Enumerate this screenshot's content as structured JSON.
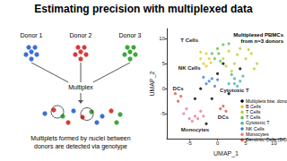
{
  "slide": {
    "title": "Estimating precision with multiplexed data",
    "diagram": {
      "donors": [
        {
          "label": "Donor 1",
          "color": "#3a6fd8"
        },
        {
          "label": "Donor 2",
          "color": "#d83a3a"
        },
        {
          "label": "Donor 3",
          "color": "#3aa83a"
        }
      ],
      "step": "Multiplex",
      "caption": [
        "Multiplets formed by nuclei between",
        "donors are detected via genotype"
      ]
    }
  },
  "chart_data": {
    "type": "scatter",
    "x_label": "UMAP_1",
    "y_label": "UMAP_2",
    "note": [
      "Multiplexed PBMCs",
      "from n=3 donors"
    ],
    "annotations": [
      "T Cells",
      "NK Cells",
      "Cytotoxic T",
      "DCs",
      "DCs",
      "Monocytes"
    ],
    "xlim": [
      -9,
      12
    ],
    "xticks": [
      -5,
      0,
      5,
      10
    ],
    "ylim": [
      -10,
      12
    ],
    "yticks": [
      -5,
      0,
      5,
      10
    ],
    "grid": false,
    "legend": "right",
    "series": [
      {
        "name": "Multiplets btw. donors",
        "color": "#000000",
        "values": [
          [
            0,
            3
          ],
          [
            -1,
            -2
          ],
          [
            2,
            -1
          ],
          [
            -4,
            -2
          ],
          [
            1,
            5
          ],
          [
            -3,
            0
          ],
          [
            4,
            4
          ],
          [
            -2,
            -7
          ]
        ]
      },
      {
        "name": "B Cells",
        "color": "#e8c820",
        "values": [
          [
            -3,
            6
          ],
          [
            -2,
            7
          ],
          [
            -2.5,
            5
          ],
          [
            -1.5,
            6
          ],
          [
            -3,
            7.3
          ],
          [
            -2,
            4.5
          ],
          [
            -1.2,
            5.2
          ]
        ]
      },
      {
        "name": "T Cells",
        "color": "#b5d334",
        "values": [
          [
            1,
            6
          ],
          [
            2,
            7.5
          ],
          [
            3,
            5
          ],
          [
            4,
            8
          ],
          [
            5,
            6
          ],
          [
            6,
            7
          ],
          [
            2.5,
            3.5
          ],
          [
            7,
            5
          ],
          [
            3.5,
            6.8
          ],
          [
            5.5,
            7.8
          ],
          [
            1.5,
            4.5
          ],
          [
            6.5,
            4
          ]
        ]
      },
      {
        "name": "T Cells",
        "color": "#5fbf4f",
        "values": [
          [
            0,
            8
          ],
          [
            -1,
            7
          ],
          [
            0.5,
            5.5
          ],
          [
            -0.5,
            6
          ],
          [
            1,
            8.8
          ],
          [
            2,
            9
          ],
          [
            0.2,
            7
          ]
        ]
      },
      {
        "name": "Cytotoxic T",
        "color": "#3fb6a8",
        "values": [
          [
            2,
            1
          ],
          [
            3,
            2
          ],
          [
            4,
            1.5
          ],
          [
            2.5,
            2.8
          ],
          [
            3.5,
            0.5
          ],
          [
            4.5,
            2.5
          ],
          [
            3,
            1
          ]
        ]
      },
      {
        "name": "NK Cells",
        "color": "#3a7fd0",
        "values": [
          [
            -2,
            1
          ],
          [
            -1,
            2
          ],
          [
            -0.5,
            0.5
          ],
          [
            -1.5,
            1.5
          ],
          [
            0,
            1.8
          ],
          [
            -2.5,
            2.3
          ]
        ]
      },
      {
        "name": "Monocytes",
        "color": "#e87a8a",
        "values": [
          [
            -6,
            -5
          ],
          [
            -5,
            -6
          ],
          [
            -4,
            -5.5
          ],
          [
            -3,
            -4.5
          ],
          [
            -5.5,
            -4
          ],
          [
            -4.5,
            -6.5
          ],
          [
            -3.5,
            -6
          ],
          [
            -2.5,
            -5.5
          ]
        ]
      },
      {
        "name": "Dendritic Cells (DCs)",
        "color": "#e05050",
        "values": [
          [
            -7,
            -2.5
          ],
          [
            -6.5,
            -1.5
          ],
          [
            -7.5,
            -1
          ],
          [
            0.5,
            -4
          ],
          [
            1.5,
            -4.5
          ],
          [
            1,
            -3.5
          ]
        ]
      }
    ]
  }
}
